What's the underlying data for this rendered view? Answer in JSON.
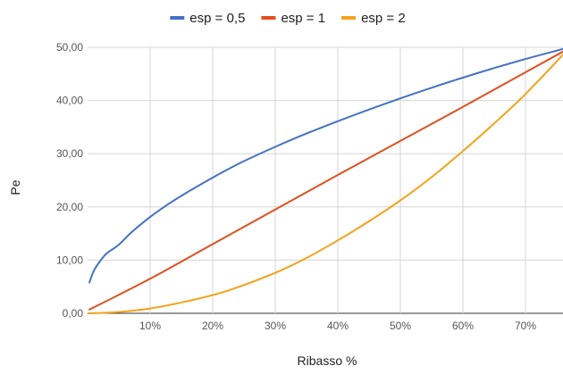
{
  "chart_data": {
    "type": "line",
    "xlabel": "Ribasso %",
    "ylabel": "Pe",
    "xlim": [
      0.0,
      0.76
    ],
    "ylim": [
      0,
      50
    ],
    "x_ticks": [
      {
        "value": 0.1,
        "label": "10%"
      },
      {
        "value": 0.2,
        "label": "20%"
      },
      {
        "value": 0.3,
        "label": "30%"
      },
      {
        "value": 0.4,
        "label": "40%"
      },
      {
        "value": 0.5,
        "label": "50%"
      },
      {
        "value": 0.6,
        "label": "60%"
      },
      {
        "value": 0.7,
        "label": "70%"
      }
    ],
    "y_ticks": [
      {
        "value": 0,
        "label": "0,00"
      },
      {
        "value": 10,
        "label": "10,00"
      },
      {
        "value": 20,
        "label": "20,00"
      },
      {
        "value": 30,
        "label": "30,00"
      },
      {
        "value": 40,
        "label": "40,00"
      },
      {
        "value": 50,
        "label": "50,00"
      }
    ],
    "grid": true,
    "legend_position": "top",
    "series": [
      {
        "name": "esp = 0,5",
        "color": "#4472c4",
        "x": [
          0.003,
          0.01,
          0.02,
          0.03,
          0.05,
          0.07,
          0.1,
          0.13,
          0.16,
          0.2,
          0.22,
          0.25,
          0.3,
          0.35,
          0.4,
          0.45,
          0.5,
          0.55,
          0.6,
          0.65,
          0.7,
          0.76
        ],
        "y": [
          5.8,
          8.0,
          9.8,
          11.2,
          12.9,
          15.2,
          18.1,
          20.6,
          22.8,
          25.5,
          26.8,
          28.6,
          31.3,
          33.8,
          36.1,
          38.3,
          40.4,
          42.4,
          44.3,
          46.1,
          47.8,
          49.7
        ]
      },
      {
        "name": "esp = 1",
        "color": "#e0501f",
        "x": [
          0.003,
          0.1,
          0.2,
          0.3,
          0.4,
          0.5,
          0.6,
          0.7,
          0.76
        ],
        "y": [
          0.7,
          6.5,
          13.0,
          19.5,
          26.0,
          32.4,
          38.8,
          45.3,
          49.2
        ]
      },
      {
        "name": "esp = 2",
        "color": "#f5a21b",
        "x": [
          0.003,
          0.05,
          0.1,
          0.16,
          0.22,
          0.3,
          0.35,
          0.4,
          0.45,
          0.5,
          0.55,
          0.6,
          0.65,
          0.7,
          0.76
        ],
        "y": [
          0.0,
          0.25,
          0.9,
          2.3,
          4.1,
          7.6,
          10.4,
          13.7,
          17.3,
          21.2,
          25.6,
          30.5,
          35.7,
          41.2,
          48.6
        ]
      }
    ]
  }
}
